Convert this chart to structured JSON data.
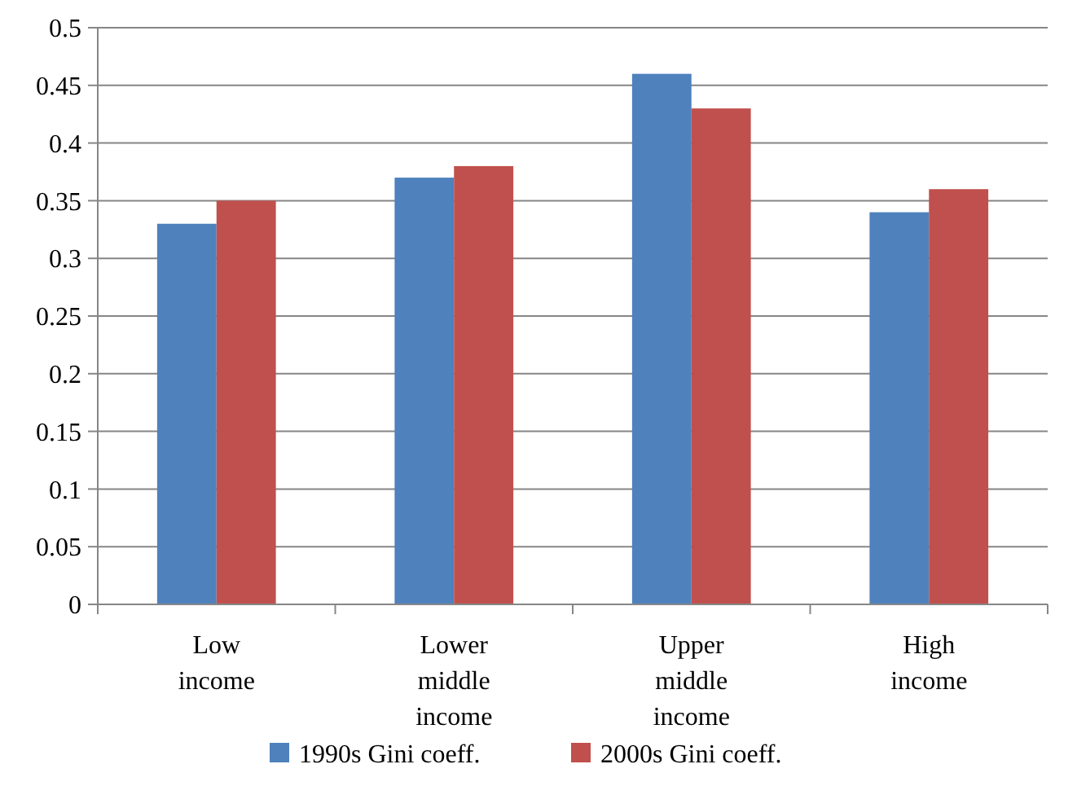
{
  "chart_data": {
    "type": "bar",
    "categories": [
      "Low income",
      "Lower middle income",
      "Upper middle income",
      "High income"
    ],
    "series": [
      {
        "name": "1990s Gini coeff.",
        "color": "#4f81bd",
        "values": [
          0.33,
          0.37,
          0.46,
          0.34
        ]
      },
      {
        "name": "2000s Gini coeff.",
        "color": "#c0504d",
        "values": [
          0.35,
          0.38,
          0.43,
          0.36
        ]
      }
    ],
    "ylim": [
      0,
      0.5
    ],
    "yticks": [
      0,
      0.05,
      0.1,
      0.15,
      0.2,
      0.25,
      0.3,
      0.35,
      0.4,
      0.45,
      0.5
    ],
    "grid": "y",
    "legend": "bottom"
  }
}
